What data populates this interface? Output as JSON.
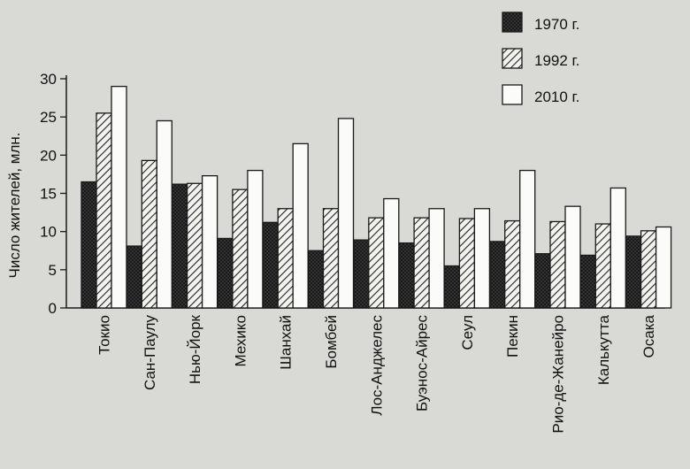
{
  "chart_data": {
    "type": "bar",
    "ylabel": "Число жителей, млн.",
    "ylim": [
      0,
      30
    ],
    "yticks": [
      0,
      5,
      10,
      15,
      20,
      25,
      30
    ],
    "categories": [
      "Токио",
      "Сан-Паулу",
      "Нью-Йорк",
      "Мехико",
      "Шанхай",
      "Бомбей",
      "Лос-Анджелес",
      "Буэнос-Айрес",
      "Сеул",
      "Пекин",
      "Рио-де-Жанейро",
      "Калькутта",
      "Осака"
    ],
    "series": [
      {
        "name": "1970 г.",
        "pattern": "cross-hatch",
        "values": [
          16.5,
          8.1,
          16.2,
          9.1,
          11.2,
          7.5,
          8.9,
          8.5,
          5.5,
          8.7,
          7.1,
          6.9,
          9.4
        ]
      },
      {
        "name": "1992 г.",
        "pattern": "diagonal-hatch",
        "values": [
          25.5,
          19.3,
          16.3,
          15.5,
          13.0,
          13.0,
          11.8,
          11.8,
          11.7,
          11.4,
          11.3,
          11.0,
          10.1
        ]
      },
      {
        "name": "2010 г.",
        "pattern": "empty",
        "values": [
          29.0,
          24.5,
          17.3,
          18.0,
          21.5,
          24.8,
          14.3,
          13.0,
          13.0,
          18.0,
          13.3,
          15.7,
          10.6
        ]
      }
    ],
    "legend_position": "top-right",
    "grid": false
  },
  "colors": {
    "background": "#d9d9d6",
    "ink": "#1a1a1a"
  }
}
